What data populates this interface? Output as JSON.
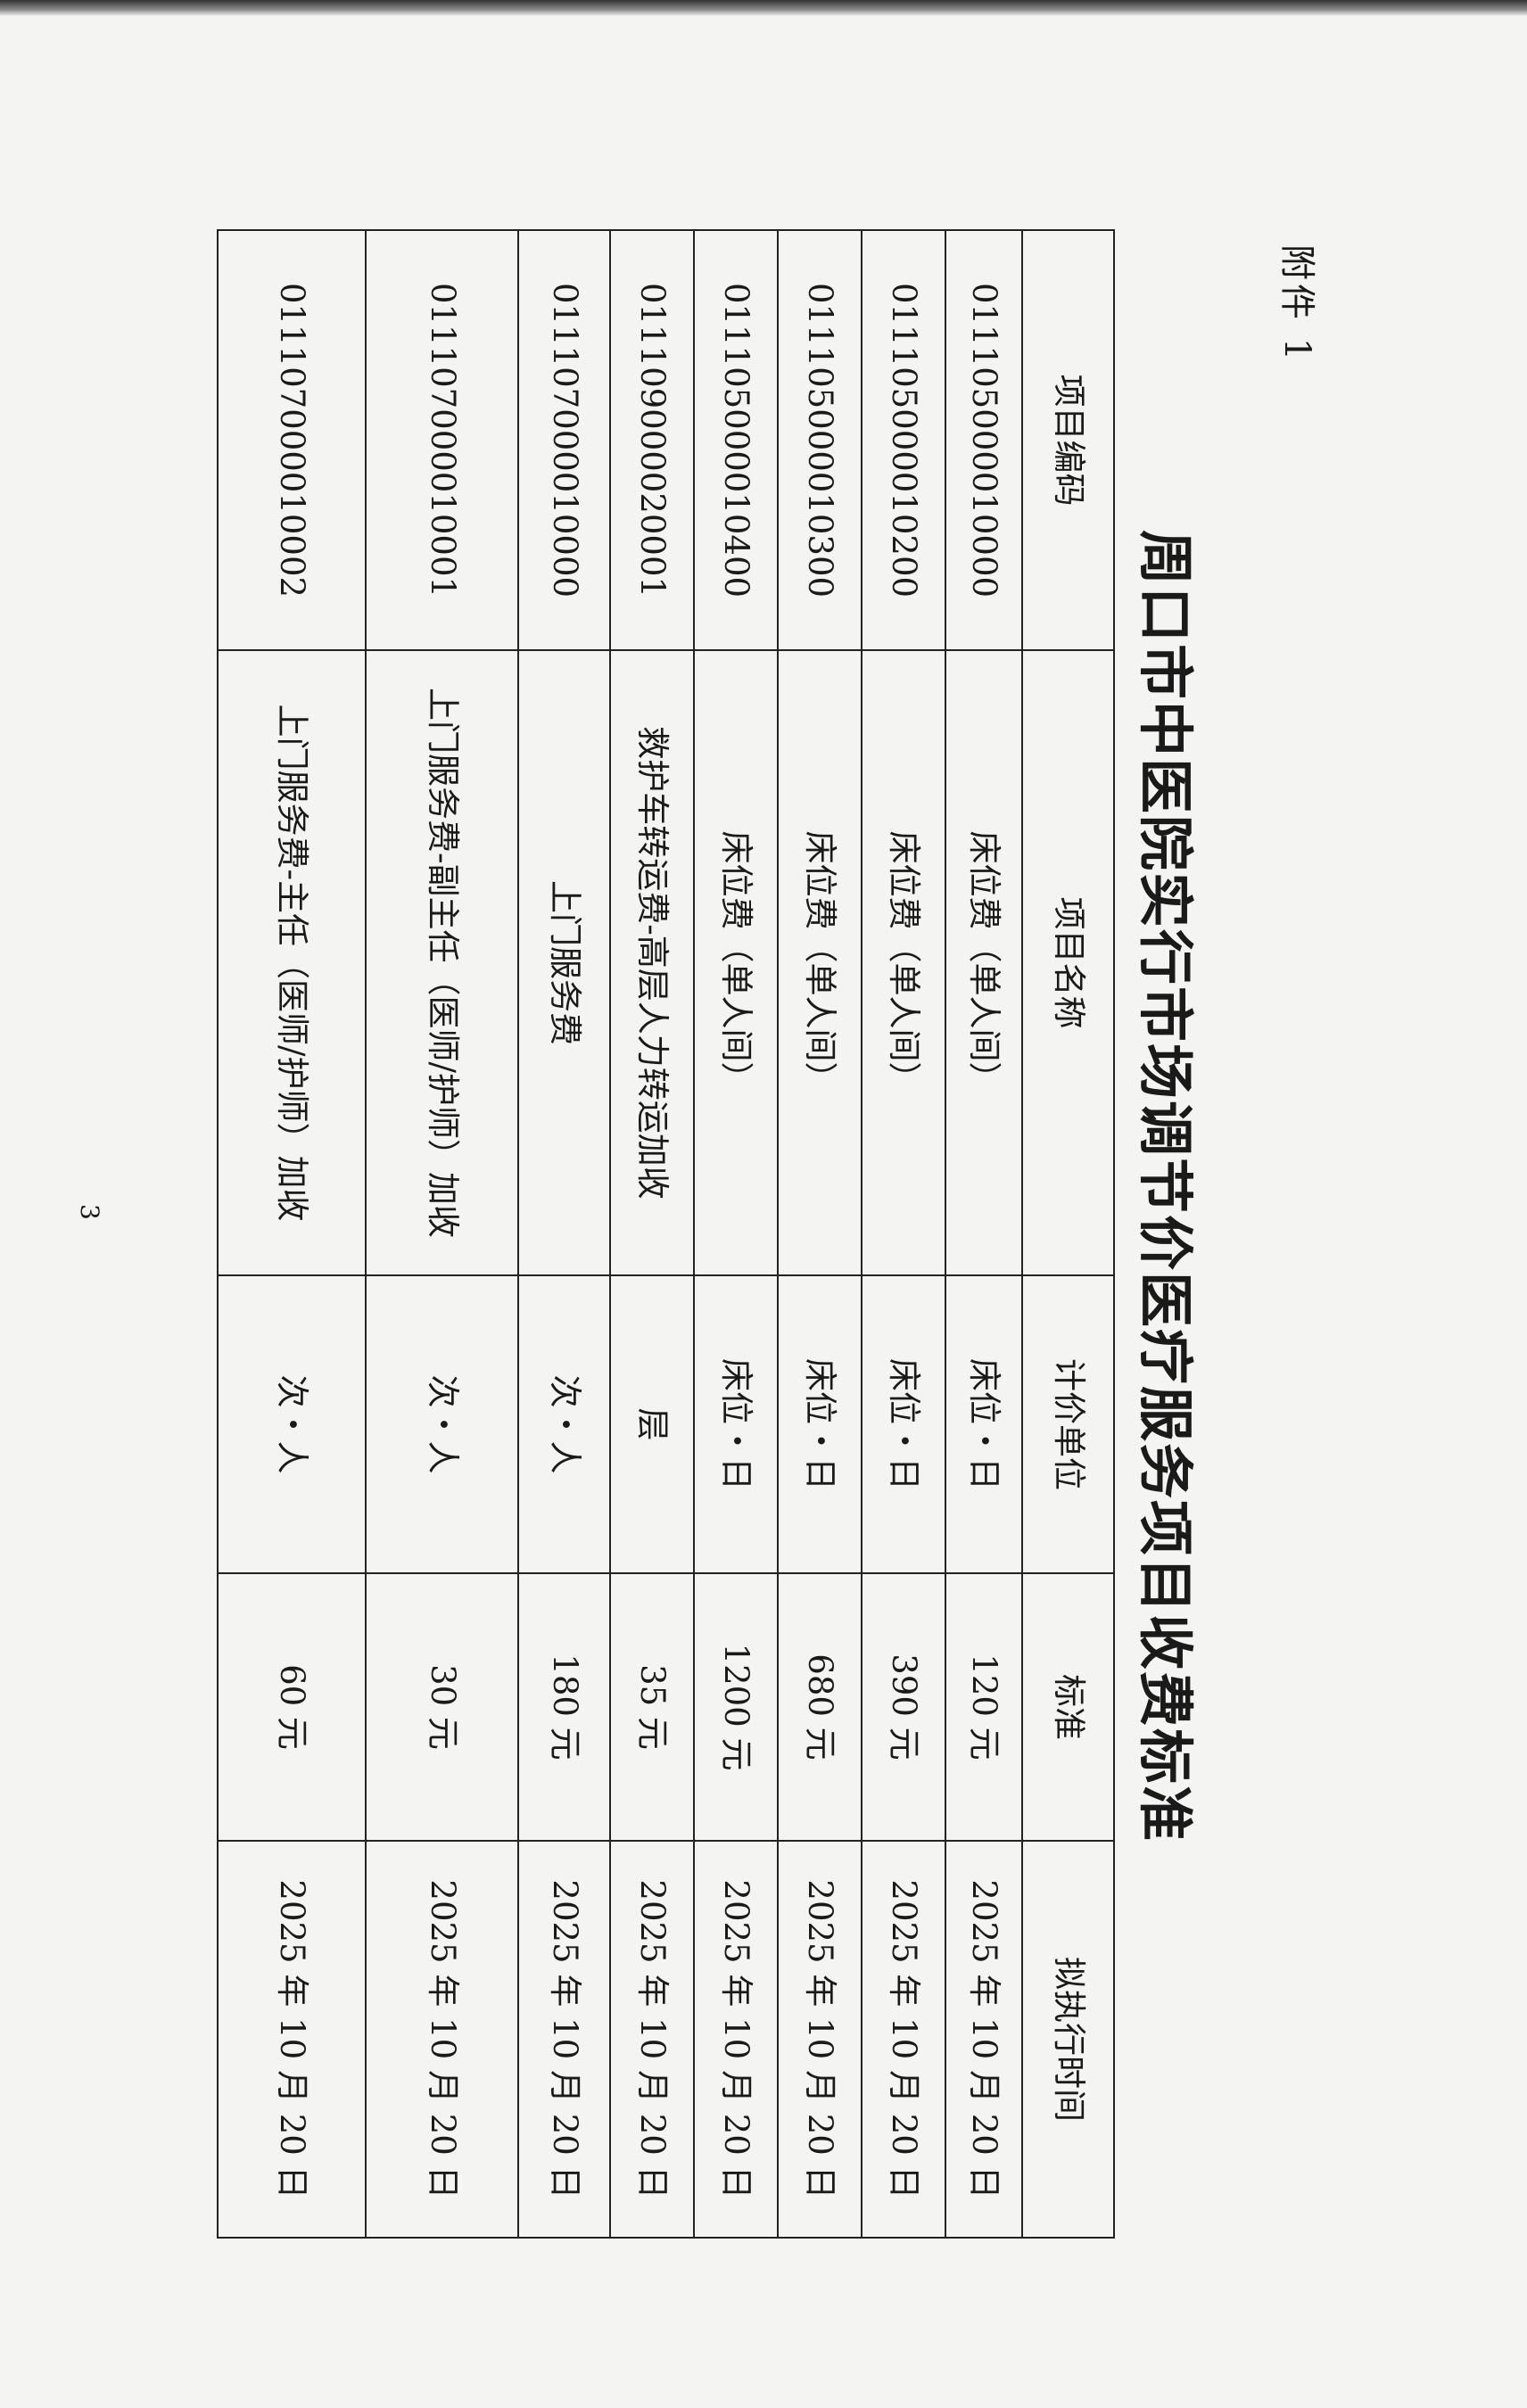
{
  "attachment_label": "附件 1",
  "title": "周口市中医院实行市场调节价医疗服务项目收费标准",
  "page_number": "3",
  "table": {
    "headers": [
      "项目编码",
      "项目名称",
      "计价单位",
      "标准",
      "拟执行时间"
    ],
    "rows": [
      [
        "011105000010000",
        "床位费（单人间）",
        "床位・日",
        "120 元",
        "2025 年 10 月 20 日"
      ],
      [
        "011105000010200",
        "床位费（单人间）",
        "床位・日",
        "390 元",
        "2025 年 10 月 20 日"
      ],
      [
        "011105000010300",
        "床位费（单人间）",
        "床位・日",
        "680 元",
        "2025 年 10 月 20 日"
      ],
      [
        "011105000010400",
        "床位费（单人间）",
        "床位・日",
        "1200 元",
        "2025 年 10 月 20 日"
      ],
      [
        "011109000020001",
        "救护车转运费-高层人力转运加收",
        "层",
        "35 元",
        "2025 年 10 月 20 日"
      ],
      [
        "011107000010000",
        "上门服务费",
        "次・人",
        "180 元",
        "2025 年 10 月 20 日"
      ],
      [
        "011107000010001",
        "上门服务费-副主任（医师/护师）加收",
        "次・人",
        "30 元",
        "2025 年 10 月 20 日"
      ],
      [
        "011107000010002",
        "上门服务费-主任（医师/护师）加收",
        "次・人",
        "60 元",
        "2025 年 10 月 20 日"
      ]
    ]
  }
}
